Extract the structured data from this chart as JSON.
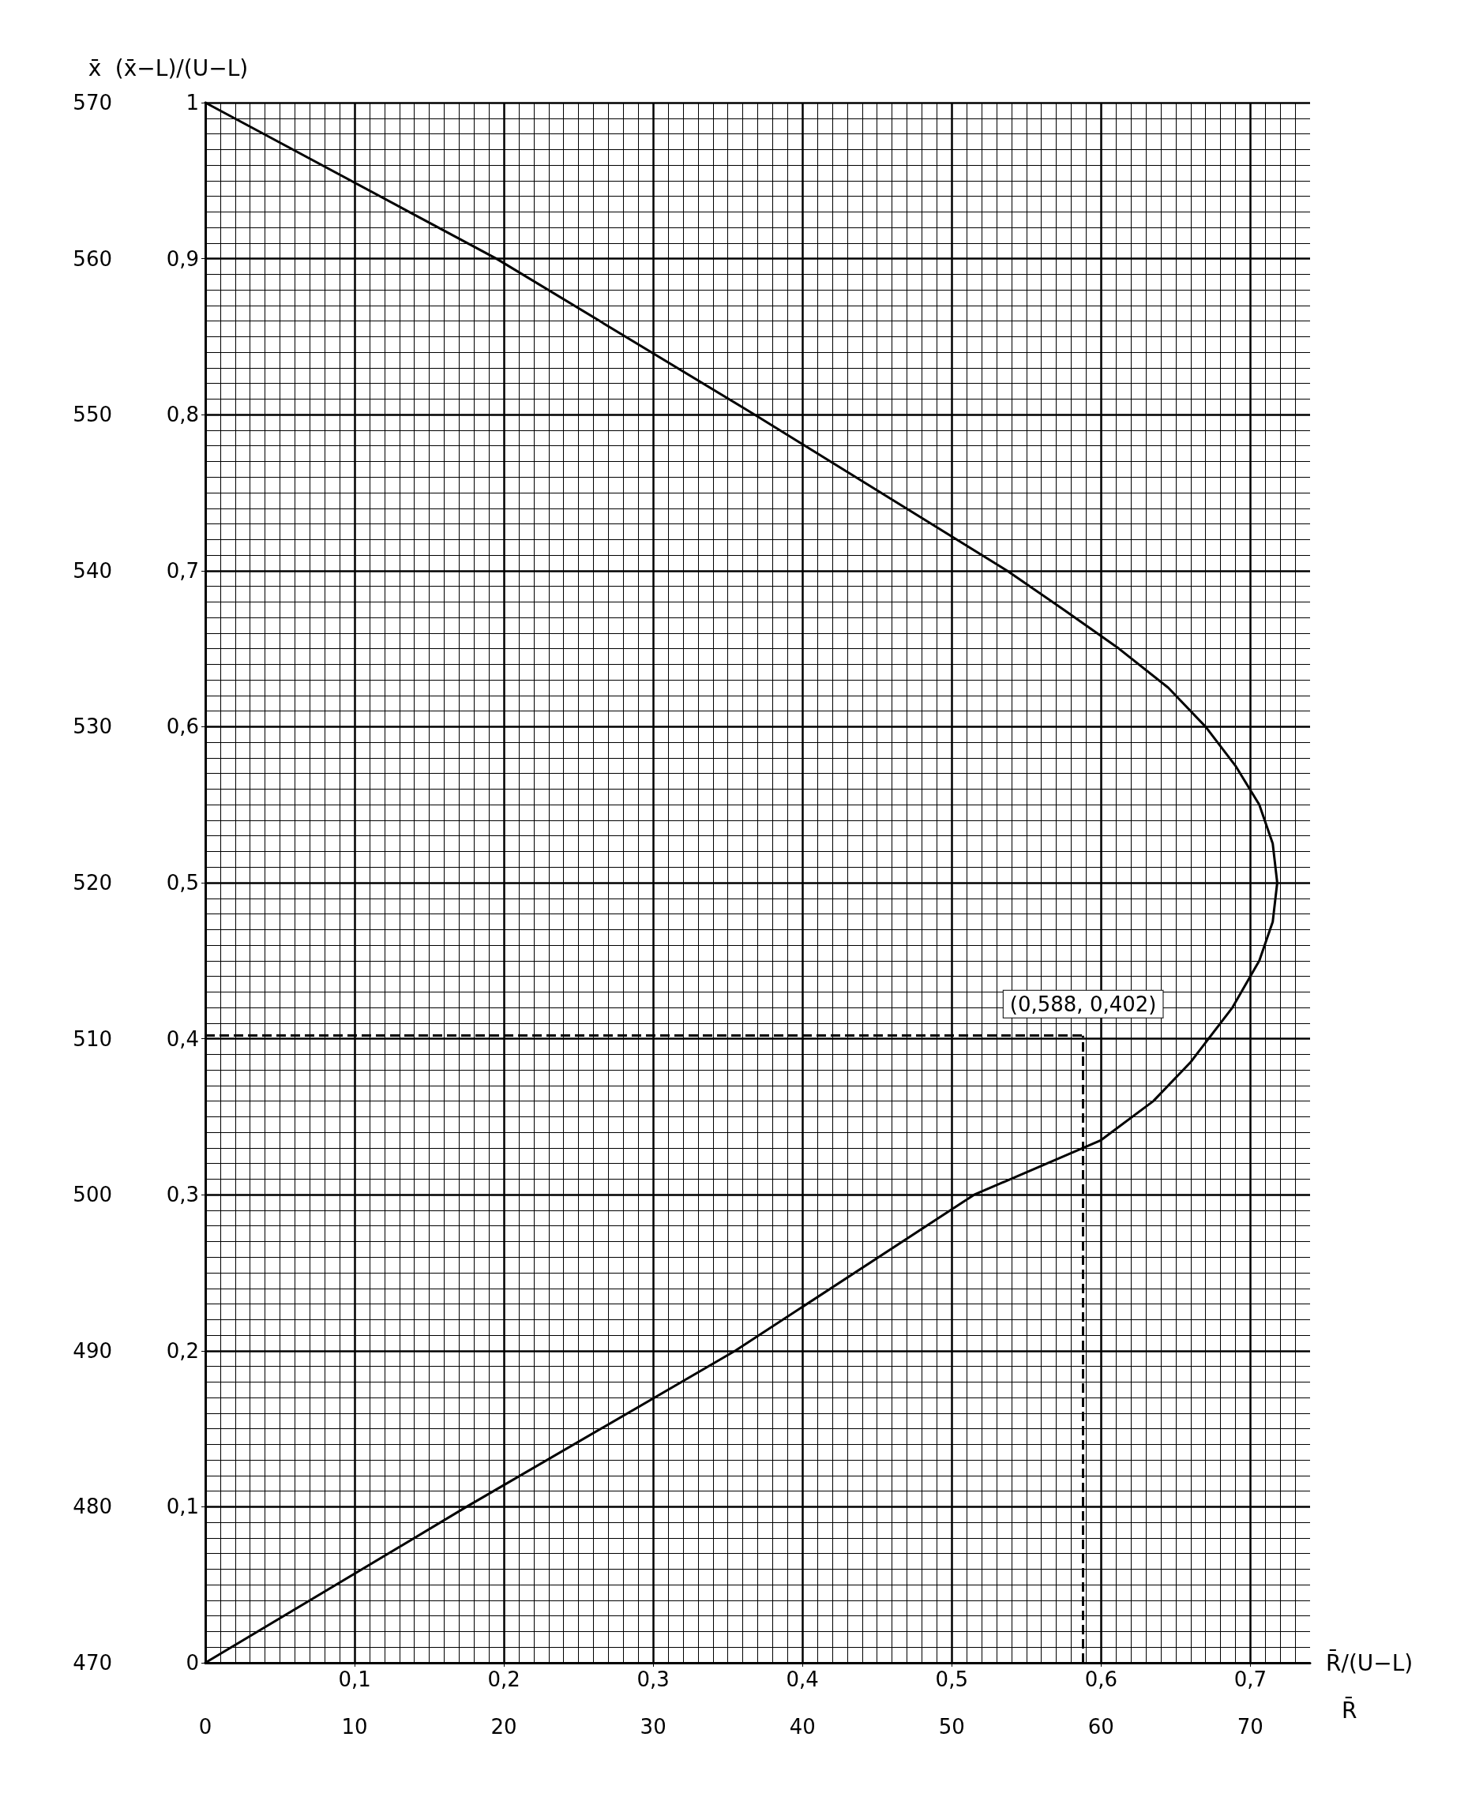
{
  "chart_data": {
    "type": "line",
    "xlabel": "R̄/(U−L)",
    "x2label": "R̄",
    "ylabel": "(x̄−L)/(U−L)",
    "y2label": "x̄",
    "series": [
      {
        "color": "#000000",
        "x": [
          0,
          0.175,
          0.355,
          0.515,
          0.6,
          0.635,
          0.66,
          0.688,
          0.706,
          0.715,
          0.718,
          0.715,
          0.706,
          0.69,
          0.67,
          0.645,
          0.612,
          0.575,
          0.537,
          0.368,
          0.195,
          0
        ],
        "values": [
          0,
          0.1,
          0.2,
          0.3,
          0.335,
          0.36,
          0.385,
          0.42,
          0.45,
          0.475,
          0.5,
          0.525,
          0.55,
          0.575,
          0.6,
          0.625,
          0.65,
          0.675,
          0.7,
          0.8,
          0.9,
          1
        ]
      }
    ],
    "xlim": [
      0,
      0.74
    ],
    "xticks": [
      {
        "value": 0.1,
        "label": "0,1"
      },
      {
        "value": 0.2,
        "label": "0,2"
      },
      {
        "value": 0.3,
        "label": "0,3"
      },
      {
        "value": 0.4,
        "label": "0,4"
      },
      {
        "value": 0.5,
        "label": "0,5"
      },
      {
        "value": 0.6,
        "label": "0,6"
      },
      {
        "value": 0.7,
        "label": "0,7"
      }
    ],
    "x2lim": [
      0,
      74
    ],
    "x2ticks": [
      0,
      10,
      20,
      30,
      40,
      50,
      60,
      70
    ],
    "ylim": [
      0,
      1
    ],
    "yticks": [
      0,
      {
        "value": 0.1,
        "label": "0,1"
      },
      {
        "value": 0.2,
        "label": "0,2"
      },
      {
        "value": 0.3,
        "label": "0,3"
      },
      {
        "value": 0.4,
        "label": "0,4"
      },
      {
        "value": 0.5,
        "label": "0,5"
      },
      {
        "value": 0.6,
        "label": "0,6"
      },
      {
        "value": 0.7,
        "label": "0,7"
      },
      {
        "value": 0.8,
        "label": "0,8"
      },
      {
        "value": 0.9,
        "label": "0,9"
      },
      1
    ],
    "y2lim": [
      470,
      570
    ],
    "y2ticks": [
      470,
      480,
      490,
      500,
      510,
      520,
      530,
      540,
      550,
      560,
      570
    ],
    "ref_lines": [
      {
        "axis": "y",
        "value": 0.402,
        "line_style": "dashed"
      },
      {
        "axis": "x",
        "value": 0.588,
        "line_style": "dashed"
      }
    ],
    "annotations": [
      {
        "text": "(0,588, 0,402)",
        "x": 0.588,
        "y": 0.402
      }
    ],
    "grid": true,
    "marker": "none",
    "line_style": "solid"
  }
}
